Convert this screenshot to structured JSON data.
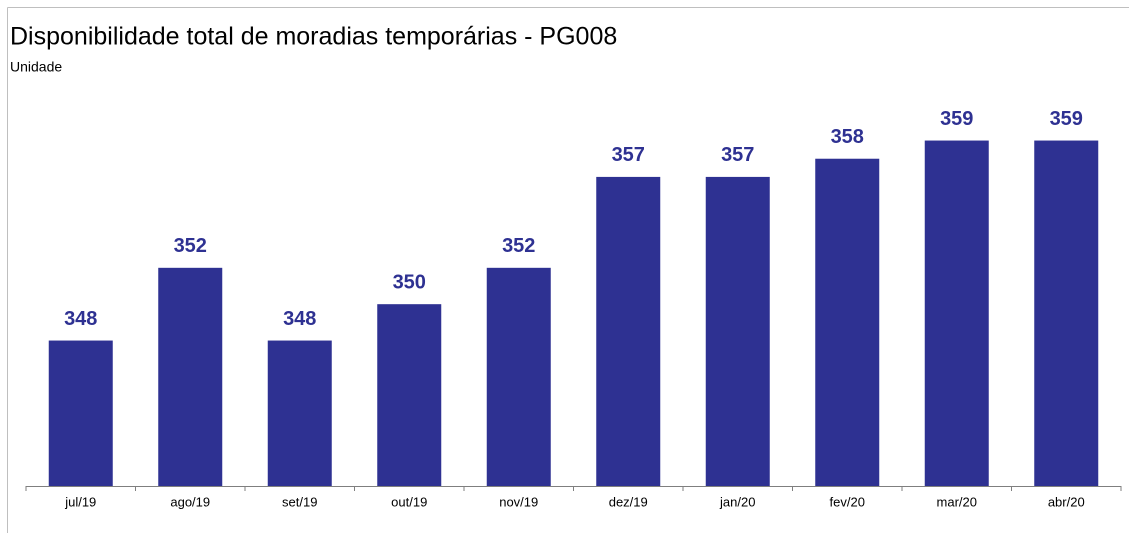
{
  "chart_data": {
    "type": "bar",
    "title": "Disponibilidade total de moradias temporárias - PG008",
    "subtitle": "Unidade",
    "categories": [
      "jul/19",
      "ago/19",
      "set/19",
      "out/19",
      "nov/19",
      "dez/19",
      "jan/20",
      "fev/20",
      "mar/20",
      "abr/20"
    ],
    "values": [
      348,
      352,
      348,
      350,
      352,
      357,
      357,
      358,
      359,
      359
    ],
    "color": "#2e3192",
    "ylim": [
      340,
      362
    ]
  }
}
